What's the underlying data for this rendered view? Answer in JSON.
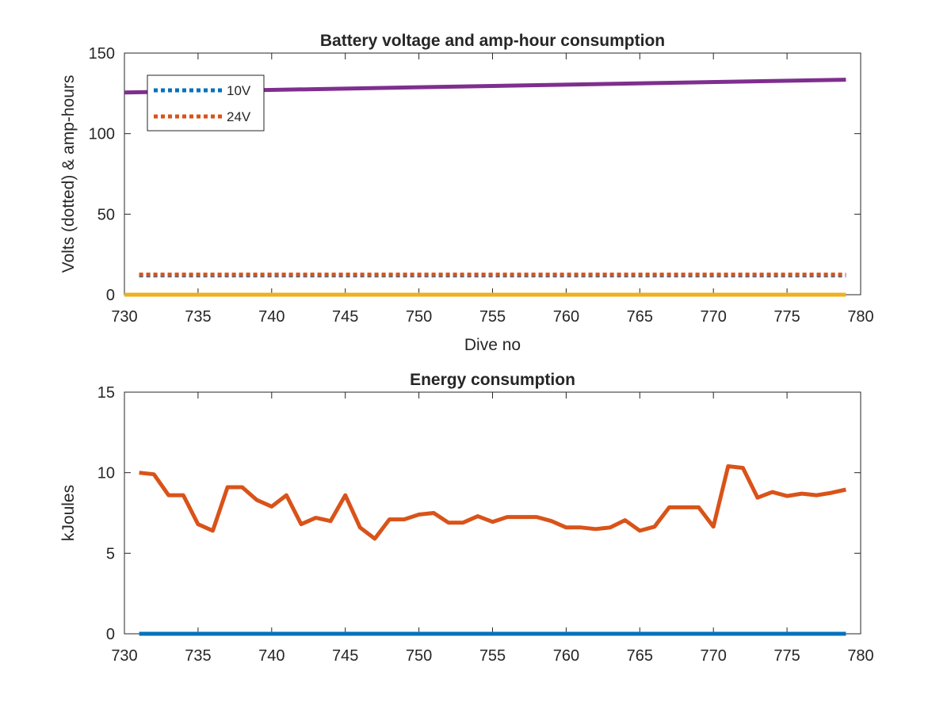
{
  "chart_data": [
    {
      "type": "line",
      "title": "Battery voltage and amp-hour consumption",
      "xlabel": "Dive no",
      "ylabel": "Volts (dotted) & amp-hours",
      "xlim": [
        730,
        780
      ],
      "ylim": [
        0,
        150
      ],
      "xticks": [
        "730",
        "735",
        "740",
        "745",
        "750",
        "755",
        "760",
        "765",
        "770",
        "775",
        "780"
      ],
      "yticks": [
        "0",
        "50",
        "100",
        "150"
      ],
      "legend": {
        "location": "top-left"
      },
      "series": [
        {
          "name": "10V",
          "style": "dotted",
          "color": "#0072BD",
          "x": [
            731,
            779
          ],
          "y": [
            12,
            12
          ]
        },
        {
          "name": "24V",
          "style": "dotted",
          "color": "#D95319",
          "x": [
            731,
            779
          ],
          "y": [
            12.5,
            12.5
          ]
        },
        {
          "style": "solid",
          "color": "#EDB120",
          "x": [
            730,
            779
          ],
          "y": [
            0,
            0
          ]
        },
        {
          "style": "solid",
          "color": "#7E2F8E",
          "x": [
            730,
            779
          ],
          "y": [
            125.5,
            133.5
          ]
        }
      ]
    },
    {
      "type": "line",
      "title": "Energy consumption",
      "xlabel": "",
      "ylabel": "kJoules",
      "xlim": [
        730,
        780
      ],
      "ylim": [
        0,
        15
      ],
      "xticks": [
        "730",
        "735",
        "740",
        "745",
        "750",
        "755",
        "760",
        "765",
        "770",
        "775",
        "780"
      ],
      "yticks": [
        "0",
        "5",
        "10",
        "15"
      ],
      "series": [
        {
          "style": "solid",
          "color": "#0072BD",
          "x": [
            731,
            779
          ],
          "y": [
            0,
            0
          ]
        },
        {
          "style": "solid",
          "color": "#D95319",
          "x": [
            731,
            732,
            733,
            734,
            735,
            736,
            737,
            738,
            739,
            740,
            741,
            742,
            743,
            744,
            745,
            746,
            747,
            748,
            749,
            750,
            751,
            752,
            753,
            754,
            755,
            756,
            757,
            758,
            759,
            760,
            761,
            762,
            763,
            764,
            765,
            766,
            767,
            768,
            769,
            770,
            771,
            772,
            773,
            774,
            775,
            776,
            777,
            778,
            779
          ],
          "y": [
            10.0,
            9.9,
            8.6,
            8.6,
            6.8,
            6.4,
            9.1,
            9.1,
            8.3,
            7.9,
            8.6,
            6.8,
            7.2,
            7.0,
            8.6,
            6.6,
            5.9,
            7.1,
            7.1,
            7.4,
            7.5,
            6.9,
            6.9,
            7.3,
            6.95,
            7.25,
            7.25,
            7.25,
            7.0,
            6.6,
            6.6,
            6.5,
            6.6,
            7.05,
            6.4,
            6.65,
            7.85,
            7.85,
            7.85,
            6.65,
            10.4,
            10.3,
            8.45,
            8.8,
            8.55,
            8.7,
            8.6,
            8.75,
            8.95
          ]
        }
      ]
    }
  ]
}
